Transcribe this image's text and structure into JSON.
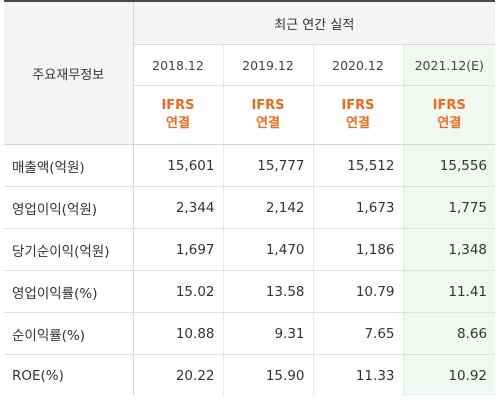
{
  "header": {
    "row_label_title": "주요재무정보",
    "group_title": "최근 연간 실적"
  },
  "years": [
    "2018.12",
    "2019.12",
    "2020.12",
    "2021.12(E)"
  ],
  "ifrs": {
    "line1": "IFRS",
    "line2": "연결"
  },
  "rows": [
    {
      "label": "매출액(억원)",
      "values": [
        "15,601",
        "15,777",
        "15,512",
        "15,556"
      ]
    },
    {
      "label": "영업이익(억원)",
      "values": [
        "2,344",
        "2,142",
        "1,673",
        "1,775"
      ]
    },
    {
      "label": "당기순이익(억원)",
      "values": [
        "1,697",
        "1,470",
        "1,186",
        "1,348"
      ]
    },
    {
      "label": "영업이익률(%)",
      "values": [
        "15.02",
        "13.58",
        "10.79",
        "11.41"
      ]
    },
    {
      "label": "순이익률(%)",
      "values": [
        "10.88",
        "9.31",
        "7.65",
        "8.66"
      ]
    },
    {
      "label": "ROE(%)",
      "values": [
        "20.22",
        "15.90",
        "11.33",
        "10.92"
      ]
    }
  ],
  "colors": {
    "ifrs_text": "#f06a1e",
    "estimate_bg": "#f1f8f1",
    "header_bg": "#f4f4f4"
  }
}
